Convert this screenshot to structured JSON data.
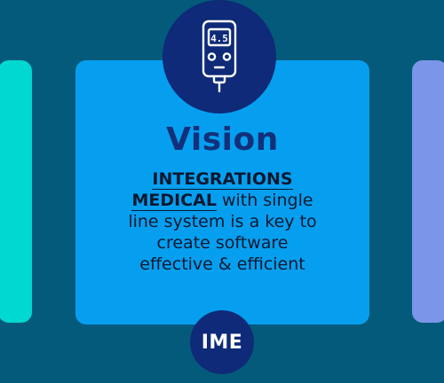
{
  "card": {
    "title": "Vision",
    "highlight_1": "INTEGRATIONS",
    "highlight_2": "MEDICAL",
    "text_1": " with single",
    "text_2": "line system is a key to",
    "text_3": "create software",
    "text_4": "effective & efficient"
  },
  "device_display": "4.5",
  "badge": {
    "label": "IME"
  },
  "colors": {
    "background": "#045a7b",
    "card": "#069fef",
    "left_card": "#00d9cf",
    "right_card": "#7b96e8",
    "navy": "#0e2a78"
  },
  "icons": {
    "device": "glucose-meter-icon"
  }
}
